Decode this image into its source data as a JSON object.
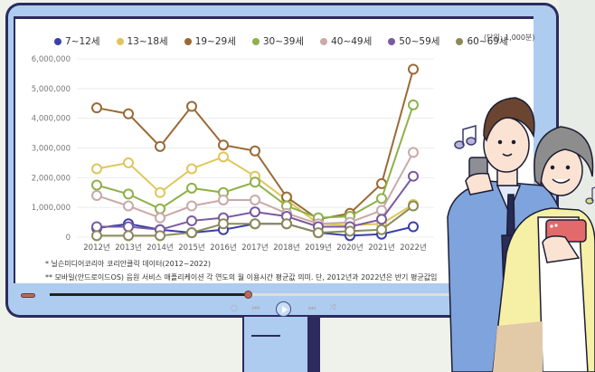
{
  "legend": [
    {
      "label": "7~12세",
      "color": "#3b3fa8"
    },
    {
      "label": "13~18세",
      "color": "#e0c65a"
    },
    {
      "label": "19~29세",
      "color": "#9a6a36"
    },
    {
      "label": "30~39세",
      "color": "#8fb04a"
    },
    {
      "label": "40~49세",
      "color": "#c9a9a9"
    },
    {
      "label": "50~59세",
      "color": "#7a5aa0"
    },
    {
      "label": "60~69세",
      "color": "#8c8a58"
    }
  ],
  "unit_label": "(단위: 1,000분)",
  "notes": {
    "note1": "* 닐슨미디어코리아 코리안클릭 데이터(2012~2022)",
    "note2": "** 모바일(안드로이드OS) 음원 서비스 애플리케이션 각 연도의 월 이용시간 평균값 의미. 단, 2012년과 2022년은 반기 평균값임"
  },
  "player": {
    "progress_percent": 48,
    "controls": [
      "repeat-icon",
      "previous-icon",
      "play-icon",
      "next-icon",
      "shuffle-icon"
    ]
  },
  "chart_data": {
    "type": "line",
    "title": "",
    "xlabel": "",
    "ylabel": "",
    "unit": "(단위: 1,000분)",
    "x": [
      "2012년",
      "2013년",
      "2014년",
      "2015년",
      "2016년",
      "2017년",
      "2018년",
      "2019년",
      "2020년",
      "2021년",
      "2022년"
    ],
    "yticks": [
      "0",
      "1,000,000",
      "2,000,000",
      "3,000,000",
      "4,000,000",
      "5,000,000",
      "6,000,000"
    ],
    "ylim": [
      0,
      6000000
    ],
    "grid": true,
    "legend_position": "top",
    "series": [
      {
        "name": "7~12세",
        "color": "#3b3fa8",
        "values": [
          300000,
          450000,
          250000,
          150000,
          250000,
          450000,
          450000,
          150000,
          50000,
          100000,
          350000
        ]
      },
      {
        "name": "13~18세",
        "color": "#e0c65a",
        "values": [
          2300000,
          2500000,
          1500000,
          2300000,
          2700000,
          2050000,
          1250000,
          450000,
          400000,
          450000,
          1100000
        ]
      },
      {
        "name": "19~29세",
        "color": "#9a6a36",
        "values": [
          4350000,
          4150000,
          3050000,
          4400000,
          3100000,
          2900000,
          1350000,
          600000,
          800000,
          1800000,
          5650000
        ]
      },
      {
        "name": "30~39세",
        "color": "#8fb04a",
        "values": [
          1750000,
          1450000,
          950000,
          1650000,
          1500000,
          1850000,
          1050000,
          650000,
          700000,
          1300000,
          4450000
        ]
      },
      {
        "name": "40~49세",
        "color": "#c9a9a9",
        "values": [
          1400000,
          1050000,
          650000,
          1050000,
          1250000,
          1250000,
          800000,
          450000,
          500000,
          900000,
          2850000
        ]
      },
      {
        "name": "50~59세",
        "color": "#7a5aa0",
        "values": [
          350000,
          350000,
          250000,
          550000,
          650000,
          850000,
          700000,
          350000,
          350000,
          600000,
          2050000
        ]
      },
      {
        "name": "60~69세",
        "color": "#8c8a58",
        "values": [
          50000,
          50000,
          50000,
          150000,
          450000,
          450000,
          450000,
          150000,
          200000,
          250000,
          1050000
        ]
      }
    ]
  }
}
